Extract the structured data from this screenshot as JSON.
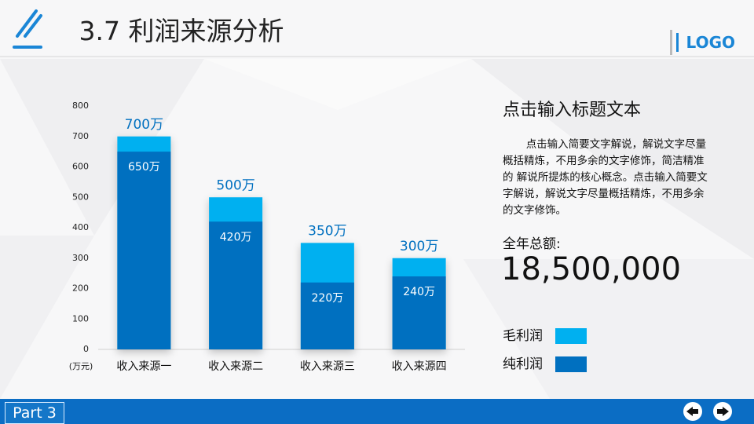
{
  "header": {
    "title": "3.7 利润来源分析",
    "logo": "LOGO"
  },
  "chart_data": {
    "type": "bar",
    "categories": [
      "收入来源一",
      "收入来源二",
      "收入来源三",
      "收入来源四"
    ],
    "series": [
      {
        "name": "毛利润",
        "color": "#00b0f0",
        "values": [
          700,
          500,
          350,
          300
        ],
        "value_labels": [
          "700万",
          "500万",
          "350万",
          "300万"
        ]
      },
      {
        "name": "纯利润",
        "color": "#0070c0",
        "values": [
          650,
          420,
          220,
          240
        ],
        "value_labels": [
          "650万",
          "420万",
          "220万",
          "240万"
        ]
      }
    ],
    "y_unit": "(万元)",
    "ylim": [
      0,
      800
    ],
    "yticks": [
      0,
      100,
      200,
      300,
      400,
      500,
      600,
      700,
      800
    ],
    "grid": false
  },
  "sidebar": {
    "title": "点击输入标题文本",
    "paragraph": "点击输入简要文字解说，解说文字尽量概括精炼，不用多余的文字修饰，简洁精准的  解说所提炼的核心概念。点击输入简要文字解说，解说文字尽量概括精炼，不用多余的文字修饰。",
    "total_label": "全年总额:",
    "total_value": "18,500,000"
  },
  "footer": {
    "part": "Part 3"
  }
}
